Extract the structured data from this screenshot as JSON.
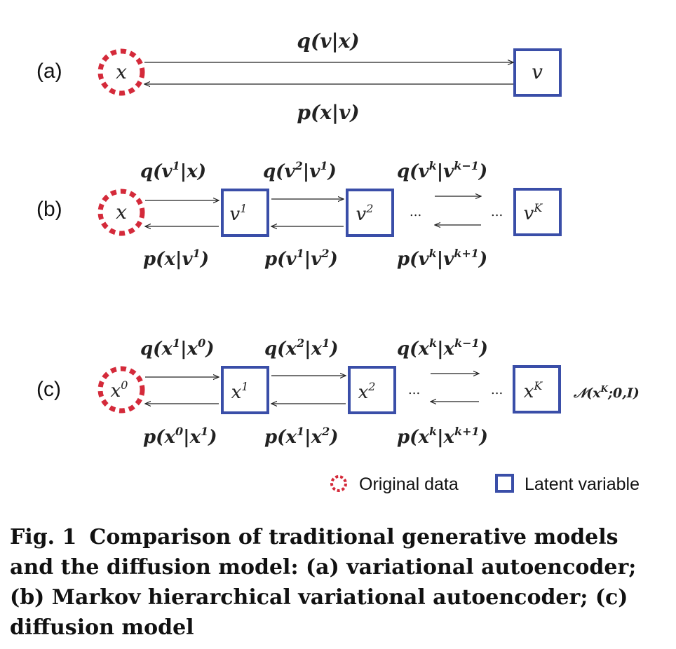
{
  "rows": {
    "a": {
      "label": "(a)",
      "data_node": "x",
      "latent_node": "v",
      "forward": "q(v|x)",
      "reverse": "p(x|v)"
    },
    "b": {
      "label": "(b)",
      "data_node": "x",
      "latent_nodes": [
        "v",
        "v",
        "v"
      ],
      "latent_sups": [
        "1",
        "2",
        "K"
      ],
      "forward": [
        [
          "q(v",
          "1",
          "|x)"
        ],
        [
          "q(v",
          "2",
          "|v",
          "1",
          ")"
        ],
        [
          "q(v",
          "k",
          "|v",
          "k−1",
          ")"
        ]
      ],
      "reverse": [
        [
          "p(x|v",
          "1",
          ")"
        ],
        [
          "p(v",
          "1",
          "|v",
          "2",
          ")"
        ],
        [
          "p(v",
          "k",
          "|v",
          "k+1",
          ")"
        ]
      ],
      "ellipsis": "..."
    },
    "c": {
      "label": "(c)",
      "data_node": "x",
      "data_sup": "0",
      "latent_nodes": [
        "x",
        "x",
        "x"
      ],
      "latent_sups": [
        "1",
        "2",
        "K"
      ],
      "forward": [
        [
          "q(x",
          "1",
          "|x",
          "0",
          ")"
        ],
        [
          "q(x",
          "2",
          "|x",
          "1",
          ")"
        ],
        [
          "q(x",
          "k",
          "|x",
          "k−1",
          ")"
        ]
      ],
      "reverse": [
        [
          "p(x",
          "0",
          "|x",
          "1",
          ")"
        ],
        [
          "p(x",
          "1",
          "|x",
          "2",
          ")"
        ],
        [
          "p(x",
          "k",
          "|x",
          "k+1",
          ")"
        ]
      ],
      "ellipsis": "...",
      "prior": [
        "𝒩(x",
        "K",
        ";0,I)"
      ]
    }
  },
  "legend": {
    "original": "Original data",
    "latent": "Latent variable"
  },
  "colors": {
    "original": "#d42a3a",
    "latent": "#3a4ea8"
  },
  "caption": {
    "figure": "Fig. 1",
    "text": "Comparison of traditional generative models and the diffusion model: (a) variational autoencoder; (b) Markov hierarchical variational autoencoder; (c) diffusion model"
  }
}
